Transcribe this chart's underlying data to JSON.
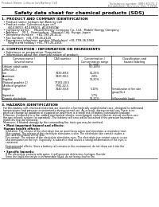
{
  "bg_color": "#ffffff",
  "header_left": "Product Name: Lithium Ion Battery Cell",
  "header_right1": "Substance number: SMH-30272-2",
  "header_right2": "Established / Revision: Dec.7.2016",
  "title": "Safety data sheet for chemical products (SDS)",
  "section1_title": "1. PRODUCT AND COMPANY IDENTIFICATION",
  "section1_lines": [
    "  • Product name: Lithium Ion Battery Cell",
    "  • Product code: Cylindrical-type cell",
    "       (A14-B650, A14-B650L, A14-B650A)",
    "  • Company name:     Maxell Energy Company Co., Ltd.  Mobile Energy Company",
    "  • Address:    20-1,  Kamitsuburi,  Sumoto-City, Hyogo, Japan",
    "  • Telephone number:   +81-799-26-4111",
    "  • Fax number:  +81-799-26-4120",
    "  • Emergency telephone number (Weekdays) +81-799-26-3962",
    "       (Night and holiday) +81-799-26-4101"
  ],
  "section2_title": "2. COMPOSITION / INFORMATION ON INGREDIENTS",
  "section2_sub1": "  • Substance or preparation: Preparation",
  "section2_sub2": "  • Information about the chemical nature of product:",
  "col_labels_row1": [
    "Common name /",
    "CAS number",
    "Concentration /",
    "Classification and"
  ],
  "col_labels_row2": [
    "Several name",
    "",
    "Concentration range",
    "hazard labeling"
  ],
  "col_labels_row3": [
    "",
    "",
    "(in-unit)",
    ""
  ],
  "table_rows": [
    [
      "Lithium cobalt oxide",
      "-",
      "(20-40%)",
      "-"
    ],
    [
      "(LiMn·CoO₂)",
      "",
      "",
      ""
    ],
    [
      "Iron",
      "7439-89-6",
      "15-25%",
      "-"
    ],
    [
      "Aluminum",
      "7429-90-5",
      "2-8%",
      "-"
    ],
    [
      "Graphite",
      "",
      "10-20%",
      ""
    ],
    [
      "(Natural graphite-1)",
      "77182-40-5",
      "",
      ""
    ],
    [
      "(Artificial graphite)",
      "7782-42-5",
      "",
      ""
    ],
    [
      "Copper",
      "7440-50-8",
      "5-10%",
      "Sensitization of the skin"
    ],
    [
      "",
      "",
      "",
      "group No.2"
    ],
    [
      "Separator",
      "-",
      "1-7%",
      ""
    ],
    [
      "Organic electrolyte",
      "-",
      "10-20%",
      "Inflammable liquid"
    ]
  ],
  "section3_title": "3. HAZARDS IDENTIFICATION",
  "section3_lines": [
    "  For this battery cell, chemical materials are stored in a hermetically sealed metal case, designed to withstand",
    "  temperatures and pressure environments during normal use. As a result, during normal use, there is no",
    "  physical change by oxidation or evaporation and there is a small risk of battery constituent leakage.",
    "  However, if exposed to a fire, added mechanical shocks, overcharged, violent electric stimuli via miss-use,",
    "  the gas release system (or operated). The battery cell case will be breached if the pressure hazardous",
    "  materials may be released.",
    "  Moreover, if heated strongly by the surrounding fire, toxic gas may be emitted."
  ],
  "section3_hazards": "  • Most important hazard and effects:",
  "section3_human_title": "  Human health effects:",
  "section3_human_lines": [
    "     Inhalation: The release of the electrolyte has an anesthesia action and stimulates a respiratory tract.",
    "     Skin contact: The release of the electrolyte stimulates a skin. The electrolyte skin contact causes a",
    "     sore and stimulation on the skin.",
    "     Eye contact: The release of the electrolyte stimulates eyes. The electrolyte eye contact causes a sore",
    "     and stimulation on the eye. Especially, a substance that causes a strong inflammation of the eyes is",
    "     contained.",
    "",
    "     Environmental effects: Since a battery cell remains in the environment, do not throw out it into the",
    "     environment."
  ],
  "section3_specific": "  • Specific hazards:",
  "section3_specific_lines": [
    "     If the electrolyte contacts with water, it will generate deleterious hydrogen fluoride.",
    "     Since the liquid electrolyte is inflammable liquid, do not bring close to fire."
  ]
}
